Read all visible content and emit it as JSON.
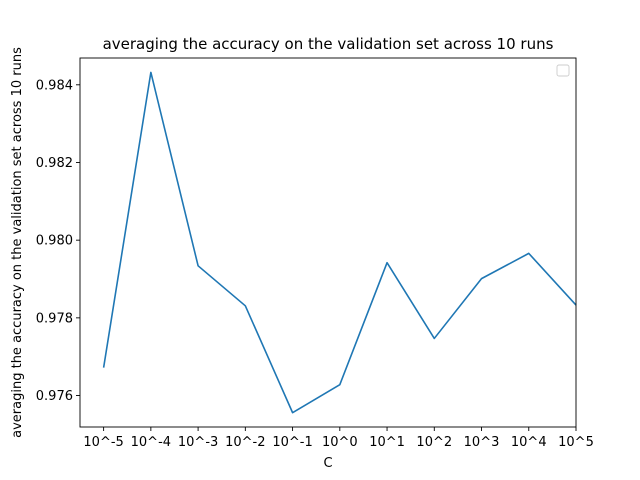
{
  "chart_data": {
    "type": "line",
    "title": "averaging the accuracy on the validation set across 10 runs",
    "xlabel": "C",
    "ylabel": "averaging the accuracy on the validation set across 10 runs",
    "categories": [
      "10^-5",
      "10^-4",
      "10^-3",
      "10^-2",
      "10^-1",
      "10^0",
      "10^1",
      "10^2",
      "10^3",
      "10^4",
      "10^5"
    ],
    "series": [
      {
        "values": [
          0.97672,
          0.98432,
          0.97934,
          0.97831,
          0.97556,
          0.97628,
          0.97942,
          0.97747,
          0.97901,
          0.97966,
          0.97833
        ],
        "color": "#1f77b4"
      }
    ],
    "yticks": [
      0.976,
      0.978,
      0.98,
      0.982,
      0.984
    ],
    "ytick_labels": [
      "0.976",
      "0.978",
      "0.980",
      "0.982",
      "0.984"
    ],
    "ylim": [
      0.97519,
      0.98469
    ],
    "xlim_index": [
      -0.5,
      10
    ],
    "grid": false,
    "legend": {
      "placement": "top-right",
      "entries": []
    }
  }
}
